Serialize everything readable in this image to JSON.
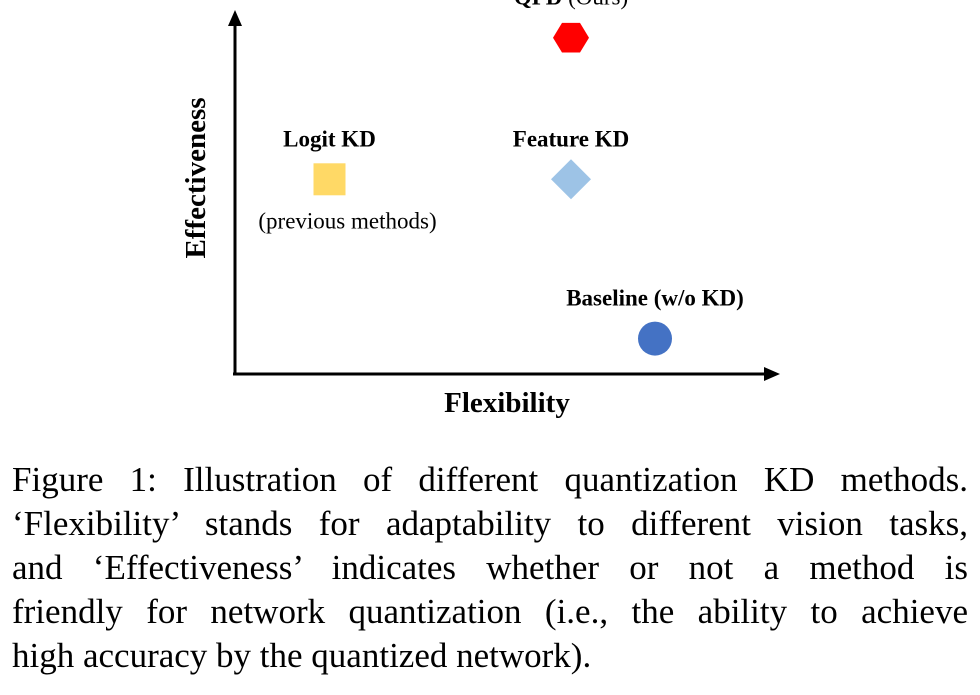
{
  "chart_data": {
    "type": "scatter",
    "xlabel": "Flexibility",
    "ylabel": "Effectiveness",
    "grid": false,
    "points": [
      {
        "label_bold": "QFD",
        "label_normal": " (Ours)",
        "marker": "hexagon",
        "color": "#ff0000",
        "x": 0.64,
        "y": 0.95
      },
      {
        "label_bold": "Logit KD",
        "label_normal": "",
        "sublabel": "(previous methods)",
        "marker": "square",
        "color": "#ffd966",
        "x": 0.18,
        "y": 0.55
      },
      {
        "label_bold": "Feature KD",
        "label_normal": "",
        "marker": "diamond",
        "color": "#9dc3e6",
        "x": 0.64,
        "y": 0.55
      },
      {
        "label_bold": "Baseline (w/o KD)",
        "label_normal": "",
        "marker": "circle",
        "color": "#4472c4",
        "x": 0.8,
        "y": 0.1
      }
    ]
  },
  "caption": {
    "lines": [
      "Figure 1: Illustration of different quantization KD methods.",
      "‘Flexibility’ stands for adaptability to different vision tasks,",
      "and ‘Effectiveness’ indicates whether or not a method is",
      "friendly for network quantization (i.e., the ability to achieve",
      "high accuracy by the quantized network)."
    ]
  }
}
